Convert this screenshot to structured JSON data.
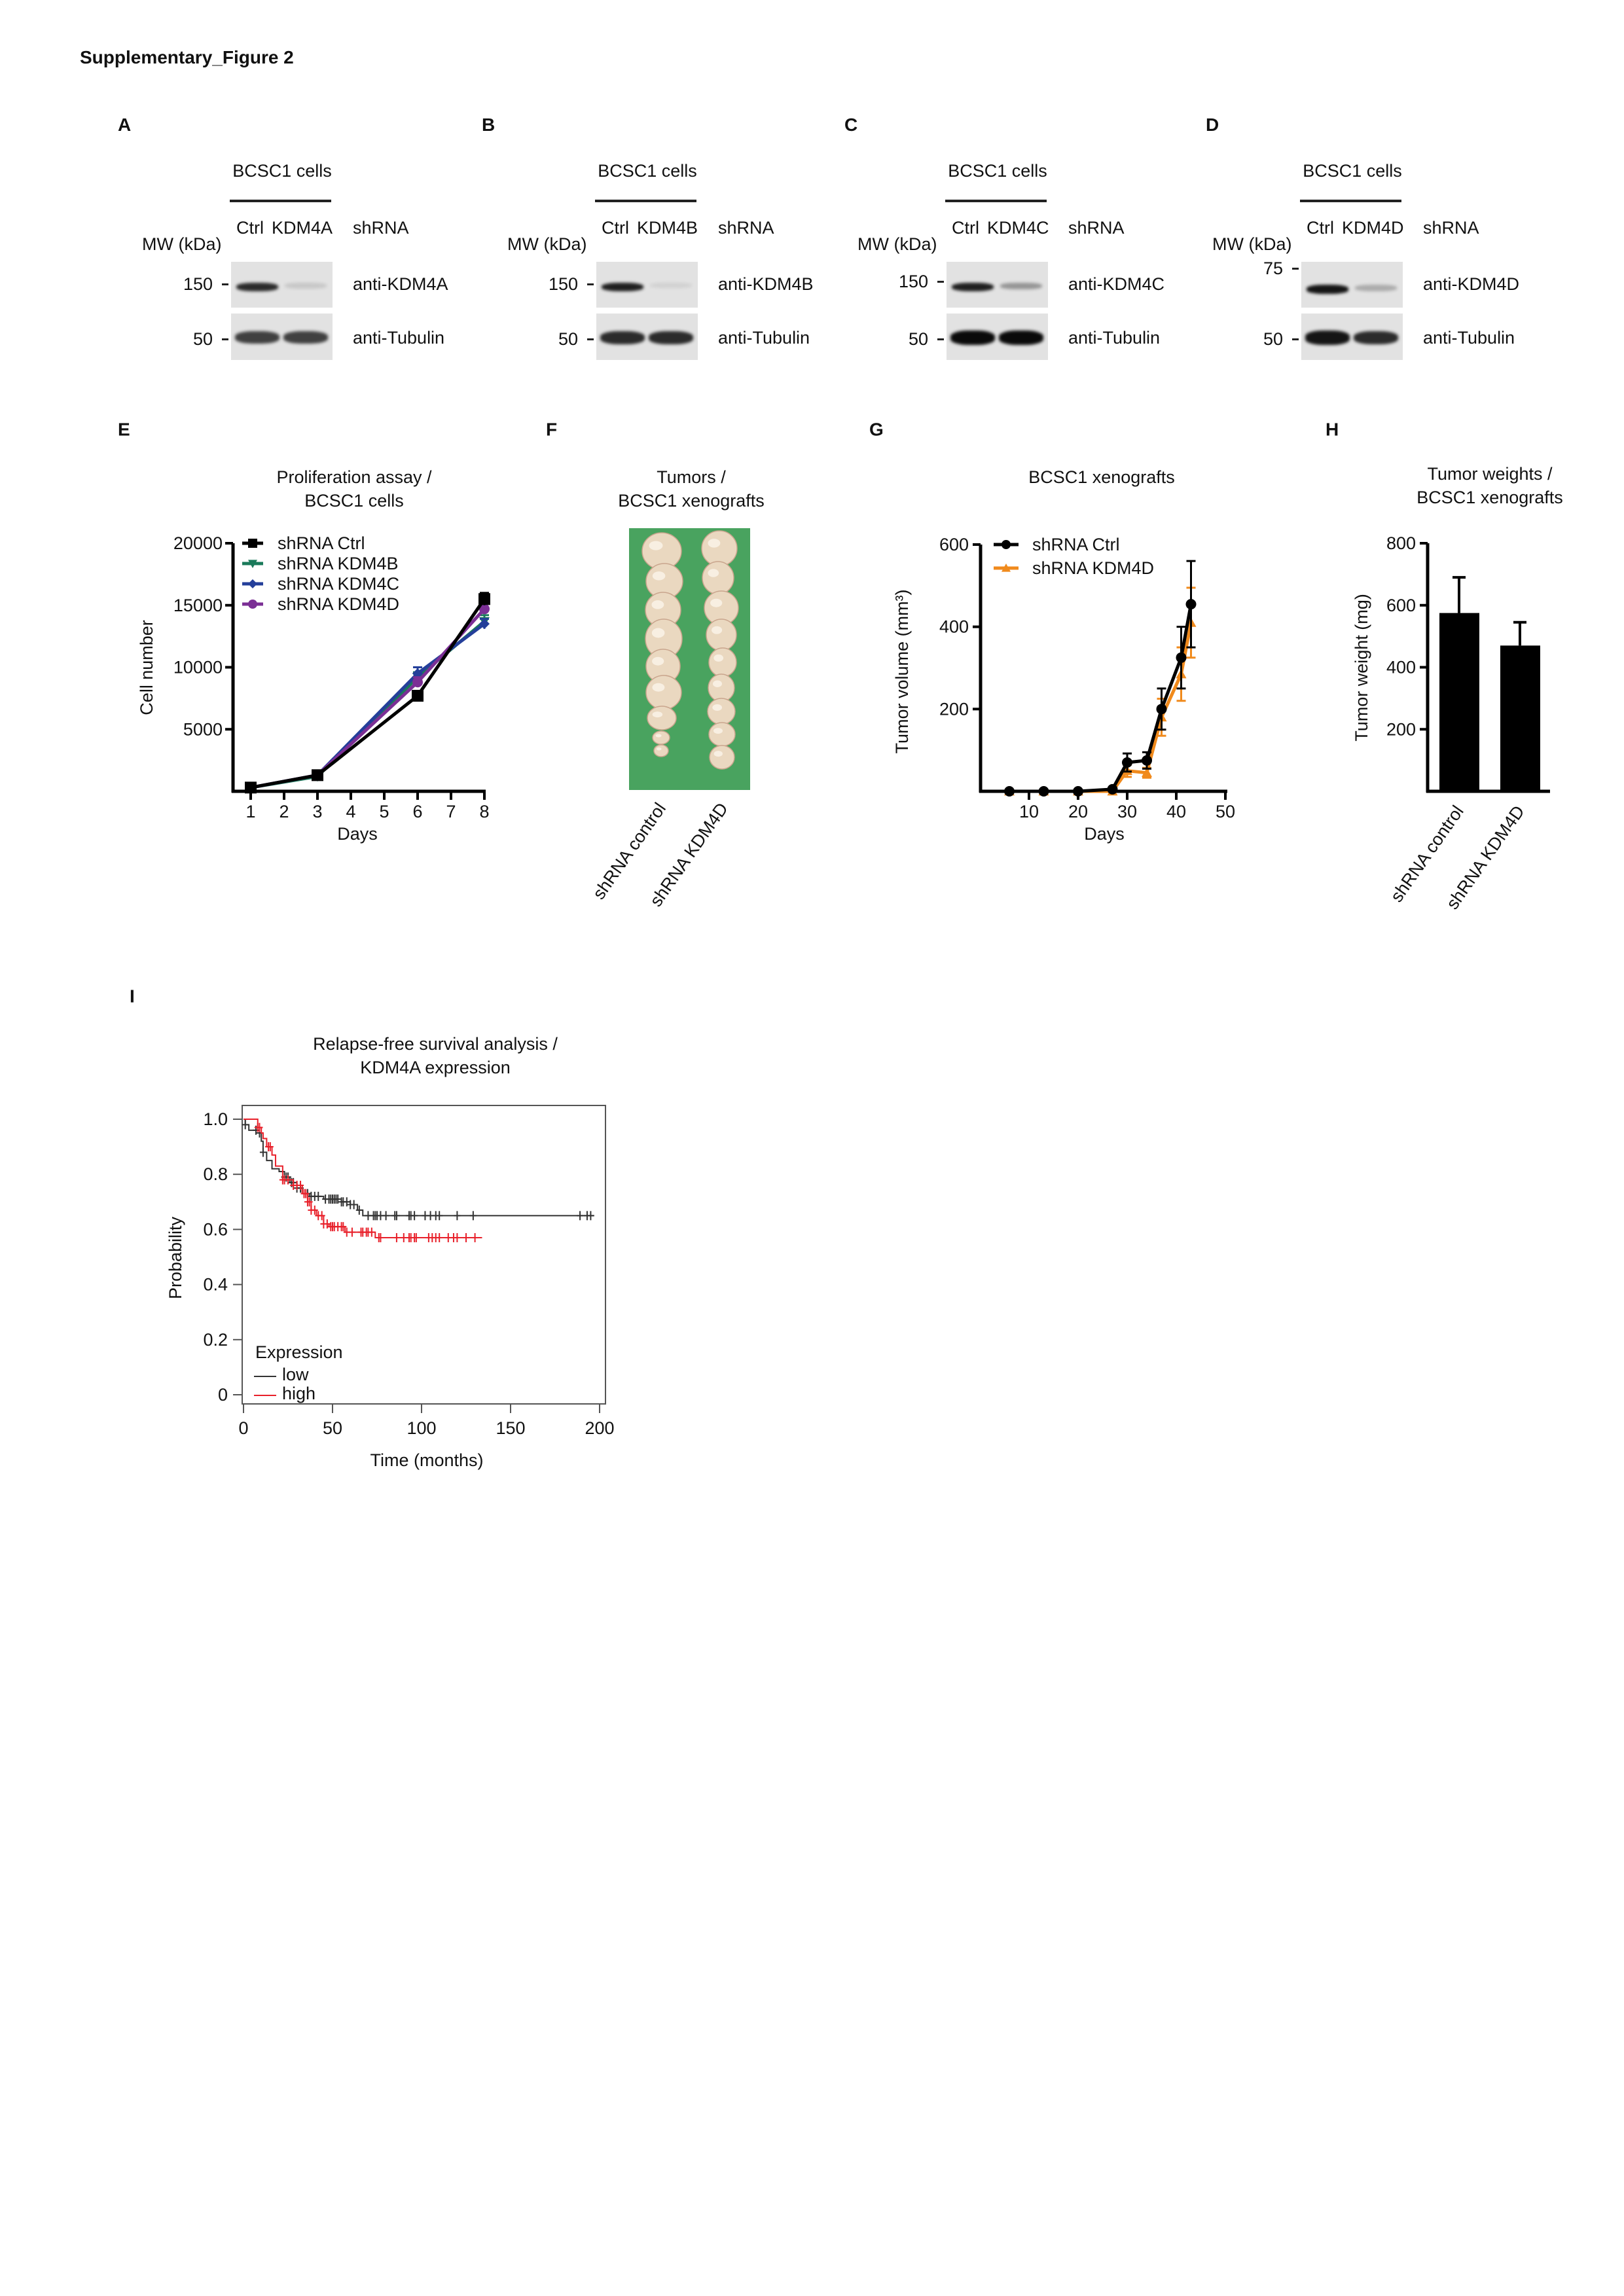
{
  "figure_title": "Supplementary_Figure 2",
  "blots": [
    {
      "label": "A",
      "cells": "BCSC1 cells",
      "lane_ctrl": "Ctrl",
      "lane_kd": "KDM4A",
      "shrna": "shRNA",
      "mw": "MW (kDa)",
      "top_marker": "150",
      "top_antibody": "anti-KDM4A",
      "bottom_marker": "50",
      "bottom_antibody": "anti-Tubulin",
      "top_band": [
        0.85,
        0.12
      ],
      "bottom_band": [
        0.75,
        0.75
      ]
    },
    {
      "label": "B",
      "cells": "BCSC1 cells",
      "lane_ctrl": "Ctrl",
      "lane_kd": "KDM4B",
      "shrna": "shRNA",
      "mw": "MW (kDa)",
      "top_marker": "150",
      "top_antibody": "anti-KDM4B",
      "bottom_marker": "50",
      "bottom_antibody": "anti-Tubulin",
      "top_band": [
        0.9,
        0.08
      ],
      "bottom_band": [
        0.85,
        0.85
      ]
    },
    {
      "label": "C",
      "cells": "BCSC1 cells",
      "lane_ctrl": "Ctrl",
      "lane_kd": "KDM4C",
      "shrna": "shRNA",
      "mw": "MW (kDa)",
      "top_marker": "150",
      "top_antibody": "anti-KDM4C",
      "bottom_marker": "50",
      "bottom_antibody": "anti-Tubulin",
      "top_band": [
        0.9,
        0.35
      ],
      "bottom_band": [
        1.0,
        1.0
      ]
    },
    {
      "label": "D",
      "cells": "BCSC1 cells",
      "lane_ctrl": "Ctrl",
      "lane_kd": "KDM4D",
      "shrna": "shRNA",
      "mw": "MW (kDa)",
      "top_marker": "75",
      "top_antibody": "anti-KDM4D",
      "bottom_marker": "50",
      "bottom_antibody": "anti-Tubulin",
      "top_band": [
        0.95,
        0.25
      ],
      "bottom_band": [
        0.95,
        0.85
      ]
    }
  ],
  "panel_f": {
    "label": "F",
    "title": [
      "Tumors /",
      "BCSC1 xenografts"
    ],
    "categories": [
      "shRNA control",
      "shRNA KDM4D"
    ]
  },
  "colors": {
    "ctrl": "#000000",
    "kdm4b": "#1a7a5a",
    "kdm4c": "#243f9a",
    "kdm4d_prolif": "#7b2f95",
    "kdm4d_xeno": "#f08a1c",
    "km_low": "#333333",
    "km_high": "#e8202a",
    "photo_bg": "#4fa864"
  },
  "chart_data": [
    {
      "panel": "E",
      "type": "line",
      "title": [
        "Proliferation assay /",
        "BCSC1 cells"
      ],
      "xlabel": "Days",
      "ylabel": "Cell number",
      "xlim": [
        1,
        8
      ],
      "ylim": [
        0,
        20000
      ],
      "xticks": [
        "1",
        "2",
        "3",
        "4",
        "5",
        "6",
        "7",
        "8"
      ],
      "yticks": [
        "5000",
        "10000",
        "15000",
        "20000"
      ],
      "x": [
        1,
        3,
        6,
        8
      ],
      "legend_position": "top-left",
      "series": [
        {
          "name": "shRNA Ctrl",
          "values": [
            300,
            1300,
            7700,
            15500
          ],
          "err": [
            100,
            150,
            400,
            500
          ],
          "marker": "square"
        },
        {
          "name": "shRNA KDM4B",
          "values": [
            300,
            1200,
            9200,
            13700
          ],
          "err": [
            100,
            150,
            400,
            500
          ],
          "marker": "triangle-down"
        },
        {
          "name": "shRNA KDM4C",
          "values": [
            300,
            1300,
            9500,
            13500
          ],
          "err": [
            100,
            150,
            500,
            400
          ],
          "marker": "diamond"
        },
        {
          "name": "shRNA KDM4D",
          "values": [
            300,
            1300,
            8800,
            14700
          ],
          "err": [
            100,
            150,
            400,
            400
          ],
          "marker": "circle"
        }
      ]
    },
    {
      "panel": "G",
      "type": "line",
      "title": [
        "BCSC1 xenografts"
      ],
      "xlabel": "Days",
      "ylabel": "Tumor volume (mm³)",
      "xlim": [
        0,
        50
      ],
      "ylim": [
        0,
        600
      ],
      "xticks": [
        "10",
        "20",
        "30",
        "40",
        "50"
      ],
      "yticks": [
        "200",
        "400",
        "600"
      ],
      "legend_position": "top-left",
      "series": [
        {
          "name": "shRNA Ctrl",
          "x": [
            6,
            13,
            20,
            27,
            30,
            34,
            37,
            41,
            43
          ],
          "values": [
            0,
            0,
            0,
            5,
            70,
            75,
            200,
            325,
            455
          ],
          "err": [
            0,
            0,
            0,
            3,
            22,
            20,
            50,
            75,
            105
          ],
          "marker": "circle"
        },
        {
          "name": "shRNA KDM4D",
          "x": [
            6,
            13,
            20,
            27,
            30,
            34,
            37,
            41,
            43
          ],
          "values": [
            0,
            0,
            0,
            0,
            50,
            45,
            180,
            285,
            410
          ],
          "err": [
            0,
            0,
            0,
            0,
            15,
            12,
            45,
            65,
            85
          ],
          "marker": "triangle"
        }
      ]
    },
    {
      "panel": "H",
      "type": "bar",
      "title": [
        "Tumor weights /",
        "BCSC1 xenografts"
      ],
      "ylabel": "Tumor weight (mg)",
      "ylim": [
        0,
        800
      ],
      "yticks": [
        "200",
        "400",
        "600",
        "800"
      ],
      "categories": [
        "shRNA control",
        "shRNA KDM4D"
      ],
      "values": [
        575,
        470
      ],
      "err": [
        115,
        75
      ]
    },
    {
      "panel": "I",
      "type": "line",
      "title": [
        "Relapse-free survival analysis /",
        "KDM4A expression"
      ],
      "xlabel": "Time (months)",
      "ylabel": "Probability",
      "xlim": [
        0,
        200
      ],
      "ylim": [
        0,
        1
      ],
      "xticks": [
        "0",
        "50",
        "100",
        "150",
        "200"
      ],
      "yticks": [
        "0",
        "0.2",
        "0.4",
        "0.6",
        "0.8",
        "1.0"
      ],
      "legend_title": "Expression",
      "legend_position": "bottom-left",
      "series": [
        {
          "name": "low",
          "steps": [
            [
              0,
              1
            ],
            [
              1,
              0.98
            ],
            [
              3,
              0.96
            ],
            [
              9,
              0.95
            ],
            [
              10,
              0.92
            ],
            [
              11,
              0.88
            ],
            [
              13,
              0.85
            ],
            [
              16,
              0.82
            ],
            [
              20,
              0.81
            ],
            [
              23,
              0.79
            ],
            [
              26,
              0.77
            ],
            [
              30,
              0.75
            ],
            [
              33,
              0.73
            ],
            [
              37,
              0.72
            ],
            [
              45,
              0.71
            ],
            [
              55,
              0.7
            ],
            [
              60,
              0.69
            ],
            [
              64,
              0.67
            ],
            [
              67,
              0.65
            ],
            [
              197,
              0.65
            ]
          ],
          "censored": [
            1,
            7,
            9,
            11,
            23,
            24,
            25,
            27,
            28,
            30,
            32,
            36,
            38,
            40,
            42,
            46,
            48,
            49,
            50,
            51,
            52,
            53,
            55,
            56,
            58,
            60,
            62,
            65,
            70,
            73,
            74,
            75,
            77,
            80,
            85,
            86,
            93,
            94,
            96,
            102,
            105,
            108,
            110,
            120,
            129,
            189,
            193,
            195
          ]
        },
        {
          "name": "high",
          "steps": [
            [
              0,
              1
            ],
            [
              5,
              1
            ],
            [
              8,
              0.97
            ],
            [
              10,
              0.95
            ],
            [
              11,
              0.93
            ],
            [
              13,
              0.9
            ],
            [
              16,
              0.87
            ],
            [
              18,
              0.83
            ],
            [
              22,
              0.78
            ],
            [
              28,
              0.76
            ],
            [
              33,
              0.73
            ],
            [
              36,
              0.7
            ],
            [
              38,
              0.67
            ],
            [
              41,
              0.65
            ],
            [
              45,
              0.62
            ],
            [
              48,
              0.61
            ],
            [
              57,
              0.59
            ],
            [
              74,
              0.57
            ],
            [
              134,
              0.57
            ]
          ],
          "censored": [
            8,
            9,
            14,
            15,
            22,
            23,
            25,
            28,
            30,
            32,
            34,
            35,
            36,
            37,
            38,
            40,
            42,
            44,
            45,
            47,
            49,
            50,
            51,
            53,
            55,
            56,
            58,
            61,
            66,
            67,
            69,
            70,
            72,
            76,
            77,
            86,
            90,
            93,
            94,
            96,
            97,
            104,
            106,
            108,
            110,
            115,
            118,
            120,
            125,
            130
          ]
        }
      ]
    }
  ]
}
